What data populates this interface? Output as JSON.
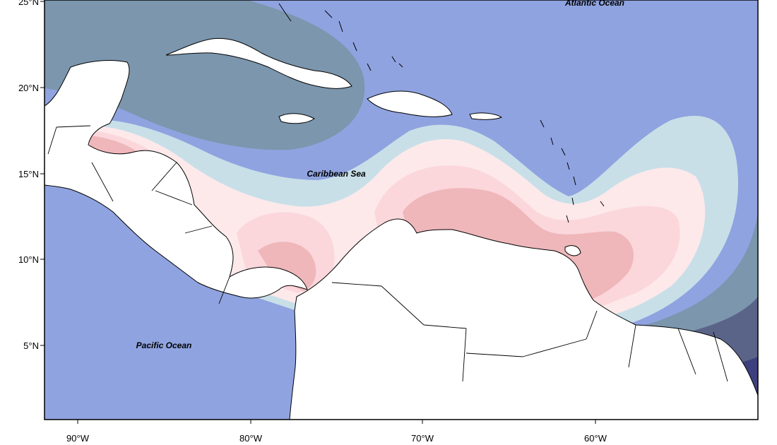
{
  "map": {
    "labels": {
      "atlantic": "Atlantic Ocean",
      "caribbean": "Caribbean Sea",
      "pacific": "Pacific Ocean"
    },
    "lat_ticks": [
      "25°N",
      "20°N",
      "15°N",
      "10°N",
      "5°N"
    ],
    "lon_ticks": [
      "90°W",
      "80°W",
      "70°W",
      "60°W"
    ],
    "colors": {
      "deep_navy": "#3d3f7e",
      "slate_dark": "#5a6488",
      "slate": "#7b96ad",
      "periwinkle": "#8fa3e0",
      "pale_blue": "#c8dfe8",
      "blush": "#fde9ea",
      "pink_light": "#fbd7dc",
      "pink": "#efb7ba",
      "pink_strong": "#f39a9c",
      "land": "#ffffff",
      "coastline": "#000000"
    }
  }
}
